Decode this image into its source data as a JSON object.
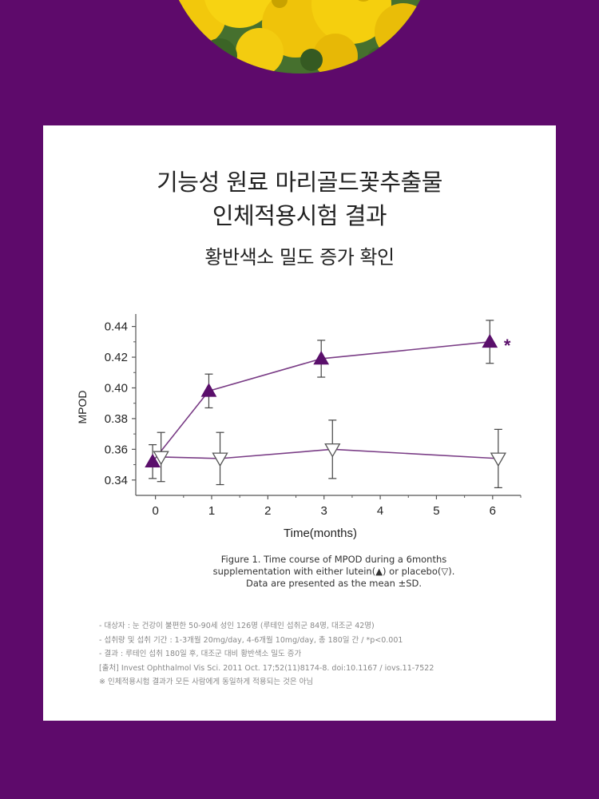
{
  "title_line1": "기능성 원료 마리골드꽃추출물",
  "title_line2": "인체적용시험 결과",
  "subtitle": "황반색소 밀도 증가 확인",
  "chart_data": {
    "type": "line",
    "xlabel": "Time(months)",
    "ylabel": "MPOD",
    "x_ticks": [
      "0",
      "1",
      "2",
      "3",
      "4",
      "5",
      "6"
    ],
    "y_ticks": [
      "0.34",
      "0.36",
      "0.38",
      "0.40",
      "0.42",
      "0.44"
    ],
    "xlim": [
      -0.35,
      6.5
    ],
    "ylim": [
      0.33,
      0.445
    ],
    "series": [
      {
        "marker": "triangle-up-filled",
        "color": "#5a0f6b",
        "x": [
          -0.05,
          0.95,
          2.95,
          5.95
        ],
        "y": [
          0.352,
          0.398,
          0.419,
          0.43
        ],
        "sd": [
          0.011,
          0.011,
          0.012,
          0.014
        ]
      },
      {
        "marker": "triangle-down-open",
        "color": "#8a4a93",
        "x": [
          0.1,
          1.15,
          3.15,
          6.1
        ],
        "y": [
          0.355,
          0.354,
          0.36,
          0.354
        ],
        "sd": [
          0.016,
          0.017,
          0.019,
          0.019
        ]
      }
    ],
    "annotations": [
      {
        "text": "*",
        "x": 6.2,
        "y": 0.43
      }
    ]
  },
  "caption": [
    "Figure 1. Time course of MPOD during a 6months",
    "supplementation with either lutein(▲) or placebo(▽).",
    "Data are presented as the mean ±SD."
  ],
  "notes": [
    "- 대상자 : 눈 건강이 불편한 50-90세 성인 126명 (루테인 섭취군 84명, 대조군 42명)",
    "- 섭취량 및 섭취 기간 : 1-3개월 20mg/day, 4-6개월 10mg/day, 총 180일 간 / *p<0.001",
    "- 결과 : 루테인 섭취 180일 후, 대조군 대비 황반색소 밀도 증가",
    "[출처] Invest Ophthalmol Vis Sci. 2011 Oct. 17;52(11)8174-8. doi:10.1167 / iovs.11-7522",
    "※ 인체적용시험 결과가 모든 사람에게 동일하게 적용되는 것은 아님"
  ]
}
